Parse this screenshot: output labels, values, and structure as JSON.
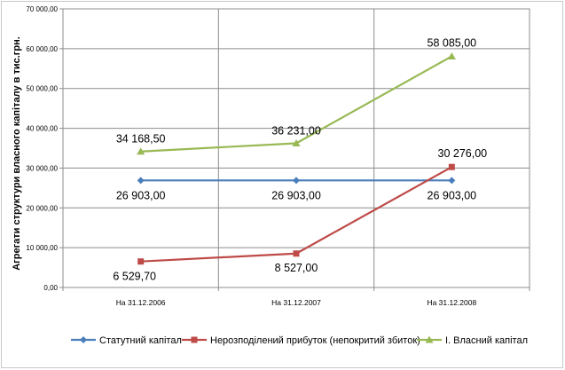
{
  "chart_data": {
    "type": "line",
    "title": "",
    "xlabel": "",
    "ylabel": "Агрегати структури власного капіталу в тис.грн.",
    "ylim": [
      0,
      70000
    ],
    "yticks": [
      "0,00",
      "10 000,00",
      "20 000,00",
      "30 000,00",
      "40 000,00",
      "50 000,00",
      "60 000,00",
      "70 000,00"
    ],
    "categories": [
      "На 31.12.2006",
      "На 31.12.2007",
      "На 31.12.2008"
    ],
    "grid": true,
    "legend_position": "bottom",
    "series": [
      {
        "name": "Статутний капітал",
        "color": "#4a7ebb",
        "marker": "diamond",
        "values": [
          26903,
          26903,
          26903
        ],
        "labels": [
          "26 903,00",
          "26 903,00",
          "26 903,00"
        ]
      },
      {
        "name": "Нерозподілений прибуток (непокритий збиток)",
        "color": "#be4b48",
        "marker": "square",
        "values": [
          6529.7,
          8527,
          30276
        ],
        "labels": [
          "6 529,70",
          "8 527,00",
          "30 276,00"
        ]
      },
      {
        "name": "І. Власний капітал",
        "color": "#98b954",
        "marker": "triangle",
        "values": [
          34168.5,
          36231,
          58085
        ],
        "labels": [
          "34 168,50",
          "36 231,00",
          "58 085,00"
        ]
      }
    ]
  }
}
